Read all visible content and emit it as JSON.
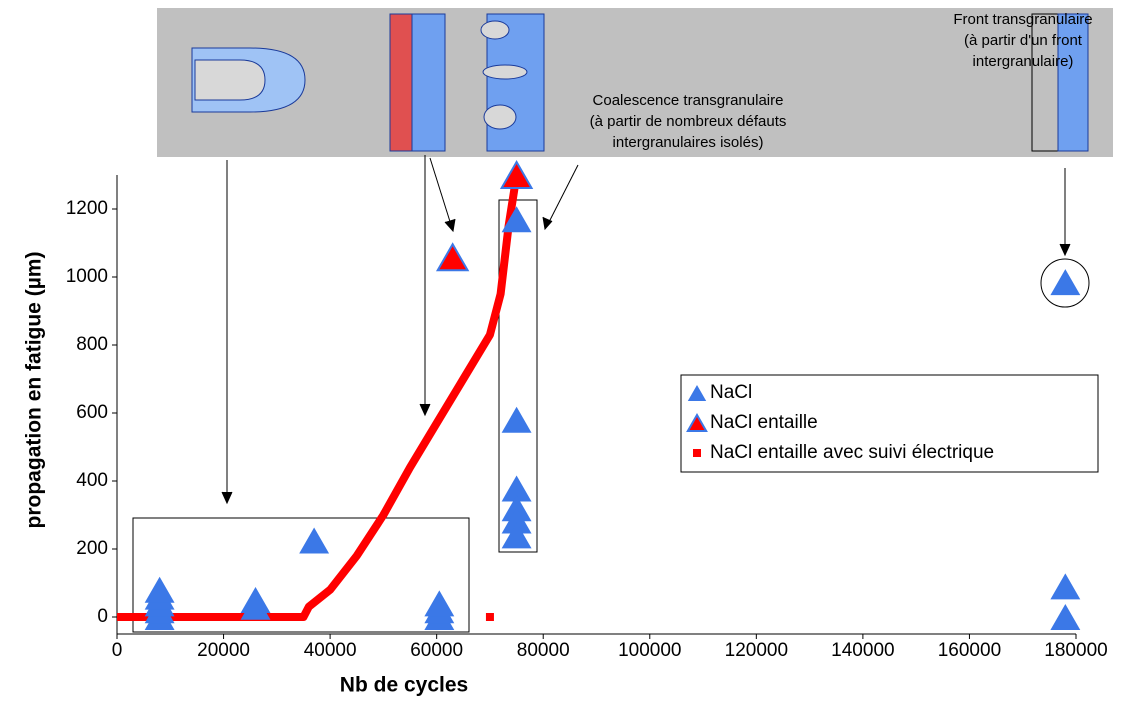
{
  "chart_data": {
    "type": "scatter",
    "x_label": "Nb de cycles",
    "y_label": "propagation en fatigue (µm)",
    "xlim": [
      0,
      180000
    ],
    "ylim": [
      -50,
      1300
    ],
    "xticks": [
      0,
      20000,
      40000,
      60000,
      80000,
      100000,
      120000,
      140000,
      160000,
      180000
    ],
    "yticks": [
      0,
      200,
      400,
      600,
      800,
      1000,
      1200
    ],
    "annotations": [
      [
        "Front transgranulaire",
        "(à partir d'un front",
        "intergranulaire)"
      ],
      [
        "Coalescence transgranulaire",
        "(à partir de nombreux défauts",
        "intergranulaires isolés)"
      ]
    ],
    "series": [
      {
        "name": "NaCl",
        "color": "#3b78e7",
        "marker": "triangle",
        "x": [
          8000,
          8000,
          8000,
          8000,
          8000,
          26000,
          26000,
          37000,
          60500,
          60500,
          60500,
          75000,
          75000,
          75000,
          75000,
          75000,
          75000,
          178000,
          178000,
          178000
        ],
        "values": [
          0,
          20,
          40,
          60,
          80,
          30,
          50,
          225,
          0,
          20,
          40,
          1170,
          580,
          378,
          320,
          284,
          240,
          985,
          90,
          0
        ]
      },
      {
        "name": "NaCl entaille",
        "color": "#ff0000",
        "marker": "triangle",
        "x": [
          63000,
          75000
        ],
        "values": [
          1058,
          1300
        ]
      },
      {
        "name": "NaCl entaille avec suivi électrique",
        "color": "#ff0000",
        "marker": "line",
        "x": [
          0,
          35000,
          36000,
          40000,
          45000,
          50000,
          55000,
          60000,
          65000,
          70000,
          72000,
          73500,
          75000,
          null,
          70000
        ],
        "values": [
          0,
          0,
          30,
          80,
          180,
          300,
          440,
          570,
          700,
          830,
          950,
          1150,
          1300,
          null,
          0
        ]
      }
    ]
  }
}
